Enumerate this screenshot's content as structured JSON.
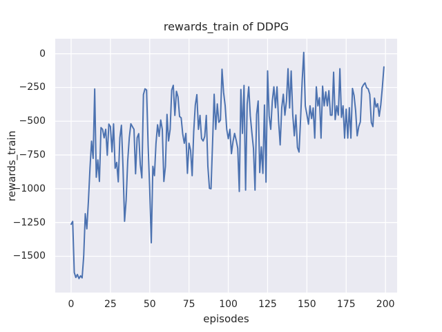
{
  "title": "rewards_train of DDPG",
  "xlabel": "episodes",
  "ylabel": "rewards_train",
  "chart_data": {
    "type": "line",
    "title": "rewards_train of DDPG",
    "xlabel": "episodes",
    "ylabel": "rewards_train",
    "legend": "none",
    "grid": true,
    "style": "seaborn-darkgrid",
    "axes_background": "#eaeaf2",
    "grid_color": "#ffffff",
    "text_color": "#262626",
    "line_color": "#4c72b0",
    "xlim": [
      -10.1,
      207.4
    ],
    "ylim": [
      -1769,
      111
    ],
    "x_ticks": [
      0,
      25,
      50,
      75,
      100,
      125,
      150,
      175,
      200
    ],
    "y_ticks": [
      0,
      -250,
      -500,
      -750,
      -1000,
      -1250,
      -1500
    ],
    "series": [
      {
        "name": "rewards_train",
        "color": "#4c72b0",
        "x": [
          0,
          1,
          2,
          3,
          4,
          5,
          6,
          7,
          8,
          9,
          10,
          11,
          12,
          13,
          14,
          15,
          16,
          17,
          18,
          19,
          20,
          21,
          22,
          23,
          24,
          25,
          26,
          27,
          28,
          29,
          30,
          31,
          32,
          33,
          34,
          35,
          36,
          37,
          38,
          39,
          40,
          41,
          42,
          43,
          44,
          45,
          46,
          47,
          48,
          49,
          50,
          51,
          52,
          53,
          54,
          55,
          56,
          57,
          58,
          59,
          60,
          61,
          62,
          63,
          64,
          65,
          66,
          67,
          68,
          69,
          70,
          71,
          72,
          73,
          74,
          75,
          76,
          77,
          78,
          79,
          80,
          81,
          82,
          83,
          84,
          85,
          86,
          87,
          88,
          89,
          90,
          91,
          92,
          93,
          94,
          95,
          96,
          97,
          98,
          99,
          100,
          101,
          102,
          103,
          104,
          105,
          106,
          107,
          108,
          109,
          110,
          111,
          112,
          113,
          114,
          115,
          116,
          117,
          118,
          119,
          120,
          121,
          122,
          123,
          124,
          125,
          126,
          127,
          128,
          129,
          130,
          131,
          132,
          133,
          134,
          135,
          136,
          137,
          138,
          139,
          140,
          141,
          142,
          143,
          144,
          145,
          146,
          147,
          148,
          149,
          150,
          151,
          152,
          153,
          154,
          155,
          156,
          157,
          158,
          159,
          160,
          161,
          162,
          163,
          164,
          165,
          166,
          167,
          168,
          169,
          170,
          171,
          172,
          173,
          174,
          175,
          176,
          177,
          178,
          179,
          180,
          181,
          182,
          183,
          184,
          185,
          186,
          187,
          188,
          189,
          190,
          191,
          192,
          193,
          194,
          195,
          196,
          197,
          198,
          199
        ],
        "y": [
          -1263,
          -1242,
          -1620,
          -1657,
          -1635,
          -1665,
          -1645,
          -1660,
          -1500,
          -1185,
          -1297,
          -1091,
          -848,
          -648,
          -775,
          -261,
          -915,
          -787,
          -946,
          -547,
          -560,
          -623,
          -560,
          -752,
          -521,
          -540,
          -727,
          -520,
          -848,
          -805,
          -949,
          -623,
          -530,
          -838,
          -1241,
          -1085,
          -795,
          -623,
          -519,
          -540,
          -560,
          -889,
          -622,
          -592,
          -821,
          -920,
          -303,
          -260,
          -269,
          -680,
          -1005,
          -1400,
          -834,
          -903,
          -663,
          -526,
          -612,
          -491,
          -560,
          -946,
          -834,
          -449,
          -646,
          -560,
          -269,
          -234,
          -457,
          -278,
          -320,
          -465,
          -475,
          -594,
          -663,
          -590,
          -886,
          -663,
          -715,
          -903,
          -577,
          -380,
          -303,
          -560,
          -457,
          -629,
          -646,
          -612,
          -457,
          -834,
          -997,
          -1000,
          -658,
          -300,
          -560,
          -372,
          -508,
          -491,
          -115,
          -286,
          -384,
          -560,
          -629,
          -560,
          -740,
          -650,
          -590,
          -640,
          -700,
          -1020,
          -265,
          -590,
          -235,
          -1010,
          -372,
          -245,
          -460,
          -585,
          -700,
          -1010,
          -450,
          -350,
          -880,
          -690,
          -886,
          -380,
          -951,
          -127,
          -460,
          -560,
          -350,
          -245,
          -400,
          -245,
          -500,
          -675,
          -400,
          -300,
          -455,
          -350,
          -111,
          -402,
          -128,
          -450,
          -608,
          -454,
          -694,
          -728,
          -480,
          -200,
          10,
          -386,
          -450,
          -522,
          -386,
          -480,
          -402,
          -625,
          -245,
          -386,
          -326,
          -625,
          -240,
          -386,
          -283,
          -386,
          -274,
          -455,
          -455,
          -137,
          -488,
          -386,
          -455,
          -111,
          -471,
          -386,
          -625,
          -411,
          -625,
          -400,
          -625,
          -257,
          -309,
          -420,
          -608,
          -540,
          -505,
          -252,
          -230,
          -216,
          -252,
          -260,
          -300,
          -509,
          -540,
          -329,
          -395,
          -370,
          -463,
          -380,
          -250,
          -98
        ]
      }
    ]
  }
}
